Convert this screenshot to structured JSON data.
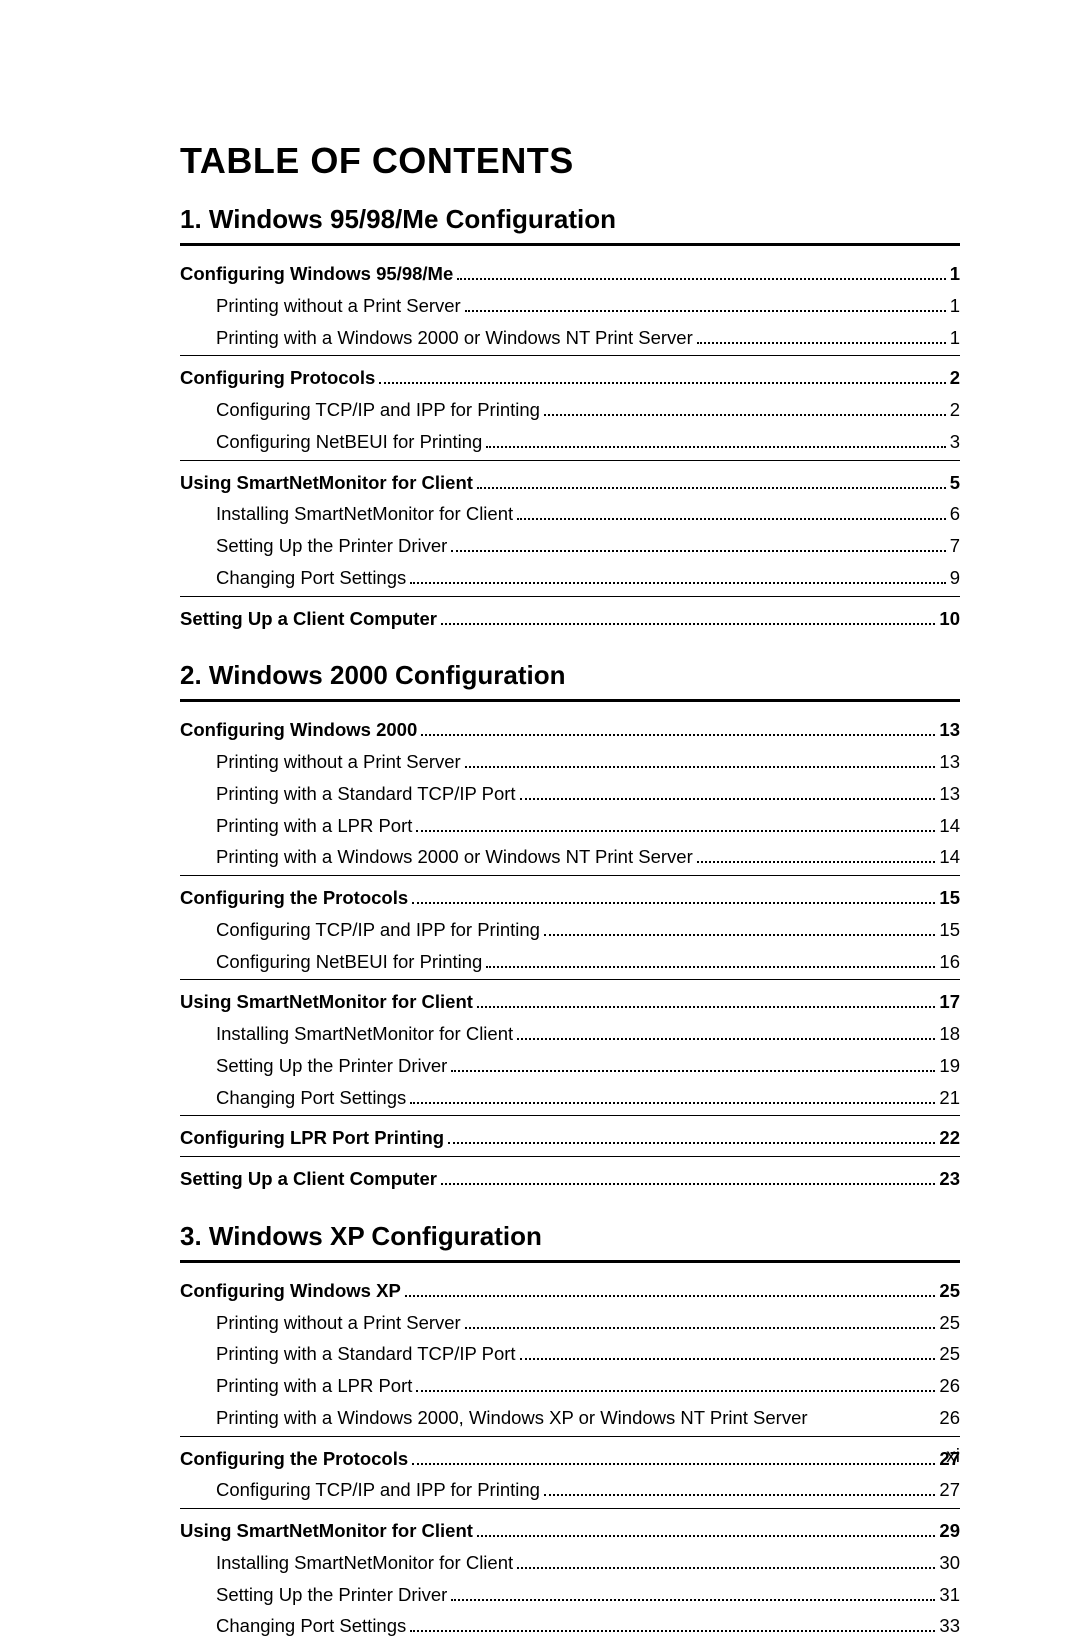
{
  "title": "TABLE OF CONTENTS",
  "pageNumber": "xi",
  "chapters": [
    {
      "number": "1.",
      "title": "Windows 95/98/Me Configuration",
      "sections": [
        {
          "heading": "Configuring Windows 95/98/Me",
          "page": "1",
          "items": [
            {
              "text": "Printing without a Print Server",
              "page": "1"
            },
            {
              "text": "Printing with a Windows 2000 or Windows NT Print Server",
              "page": "1"
            }
          ]
        },
        {
          "heading": "Configuring Protocols",
          "page": "2",
          "items": [
            {
              "text": "Configuring TCP/IP and IPP for Printing",
              "page": "2"
            },
            {
              "text": "Configuring NetBEUI for Printing",
              "page": "3"
            }
          ]
        },
        {
          "heading": "Using SmartNetMonitor for Client",
          "page": "5",
          "items": [
            {
              "text": "Installing SmartNetMonitor for Client",
              "page": "6"
            },
            {
              "text": "Setting Up the Printer Driver",
              "page": "7"
            },
            {
              "text": "Changing Port Settings",
              "page": "9"
            }
          ]
        },
        {
          "heading": "Setting Up a Client Computer",
          "page": "10",
          "items": []
        }
      ]
    },
    {
      "number": "2.",
      "title": "Windows 2000 Configuration",
      "sections": [
        {
          "heading": "Configuring Windows 2000",
          "page": "13",
          "items": [
            {
              "text": "Printing without a Print Server",
              "page": "13"
            },
            {
              "text": "Printing with a Standard TCP/IP Port",
              "page": "13"
            },
            {
              "text": "Printing with a LPR Port",
              "page": "14"
            },
            {
              "text": "Printing with a Windows 2000 or Windows NT Print Server",
              "page": "14"
            }
          ]
        },
        {
          "heading": "Configuring the Protocols",
          "page": "15",
          "items": [
            {
              "text": "Configuring TCP/IP and IPP for Printing",
              "page": "15"
            },
            {
              "text": "Configuring NetBEUI for Printing",
              "page": "16"
            }
          ]
        },
        {
          "heading": "Using SmartNetMonitor for Client",
          "page": "17",
          "items": [
            {
              "text": "Installing SmartNetMonitor for Client",
              "page": "18"
            },
            {
              "text": "Setting Up the Printer Driver",
              "page": "19"
            },
            {
              "text": "Changing Port Settings",
              "page": "21"
            }
          ]
        },
        {
          "heading": "Configuring LPR Port Printing",
          "page": "22",
          "items": []
        },
        {
          "heading": "Setting Up a Client Computer",
          "page": "23",
          "items": []
        }
      ]
    },
    {
      "number": "3.",
      "title": "Windows XP Configuration",
      "sections": [
        {
          "heading": "Configuring Windows XP",
          "page": "25",
          "items": [
            {
              "text": "Printing without a Print Server",
              "page": "25"
            },
            {
              "text": "Printing with a Standard TCP/IP Port",
              "page": "25"
            },
            {
              "text": "Printing with a LPR Port",
              "page": "26"
            },
            {
              "text": "Printing with a Windows 2000, Windows XP or Windows NT Print Server",
              "page": "26",
              "noDots": true
            }
          ]
        },
        {
          "heading": "Configuring the Protocols",
          "page": "27",
          "items": [
            {
              "text": "Configuring TCP/IP and IPP for Printing",
              "page": "27"
            }
          ]
        },
        {
          "heading": "Using SmartNetMonitor for Client",
          "page": "29",
          "items": [
            {
              "text": "Installing SmartNetMonitor for Client",
              "page": "30"
            },
            {
              "text": "Setting Up the Printer Driver",
              "page": "31"
            },
            {
              "text": "Changing Port Settings",
              "page": "33"
            }
          ]
        }
      ]
    }
  ]
}
